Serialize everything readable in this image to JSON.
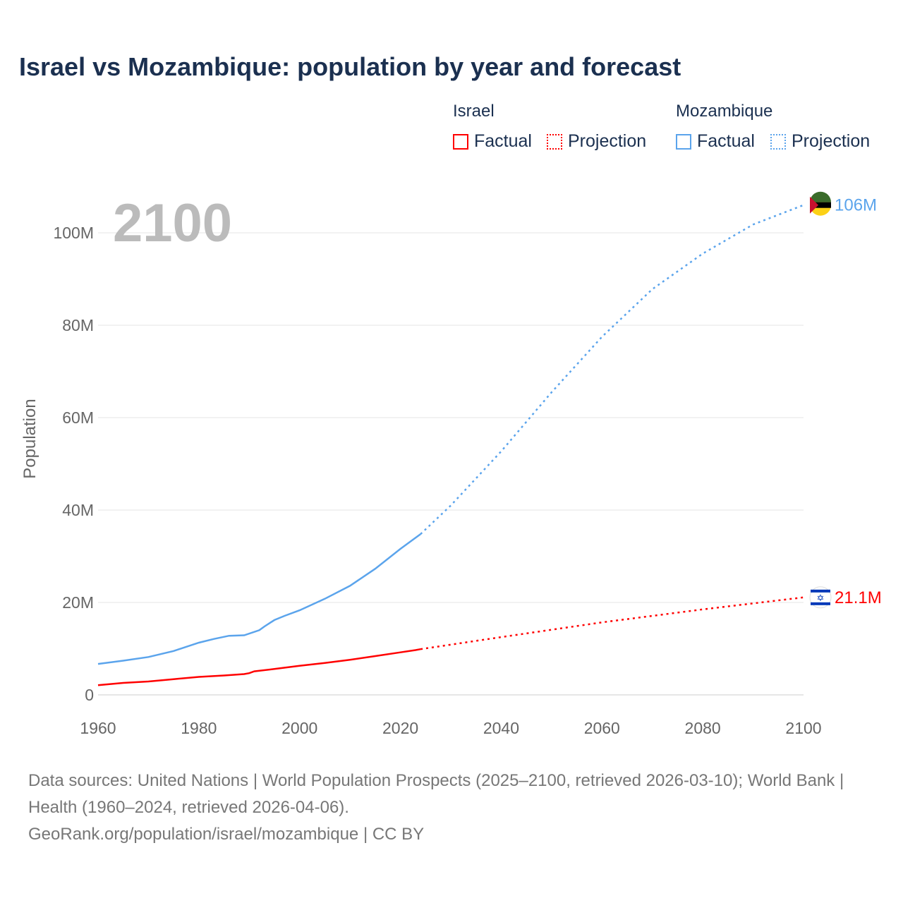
{
  "title": "Israel vs Mozambique: population by year and forecast",
  "legend": {
    "groups": [
      {
        "name": "Israel",
        "color": "#ff0000",
        "factual": "Factual",
        "projection": "Projection"
      },
      {
        "name": "Mozambique",
        "color": "#5ba4ec",
        "factual": "Factual",
        "projection": "Projection"
      }
    ]
  },
  "year_label": "2100",
  "footer": {
    "sources": "Data sources: United Nations | World Population Prospects (2025–2100, retrieved 2026-03-10); World Bank | Health (1960–2024, retrieved 2026-04-06).",
    "link": "GeoRank.org/population/israel/mozambique | CC BY"
  },
  "chart_data": {
    "type": "line",
    "title": "Israel vs Mozambique: population by year and forecast",
    "xlabel": "",
    "ylabel": "Population",
    "xlim": [
      1960,
      2100
    ],
    "ylim": [
      0,
      110
    ],
    "y_unit": "millions",
    "x_ticks": [
      1960,
      1980,
      2000,
      2020,
      2040,
      2060,
      2080,
      2100
    ],
    "x_tick_labels": [
      "1960",
      "1980",
      "2000",
      "2020",
      "2040",
      "2060",
      "2080",
      "2100"
    ],
    "y_ticks": [
      0,
      20,
      40,
      60,
      80,
      100
    ],
    "y_tick_labels": [
      "0",
      "20M",
      "40M",
      "60M",
      "80M",
      "100M"
    ],
    "grid": true,
    "series": [
      {
        "name": "Mozambique",
        "color": "#5ba4ec",
        "end_label": "106M",
        "factual": {
          "x": [
            1960,
            1965,
            1970,
            1975,
            1980,
            1983,
            1986,
            1989,
            1992,
            1993,
            1995,
            1997,
            2000,
            2005,
            2010,
            2015,
            2020,
            2024
          ],
          "y": [
            6.7,
            7.4,
            8.2,
            9.5,
            11.3,
            12.1,
            12.8,
            12.9,
            14.0,
            14.8,
            16.2,
            17.1,
            18.3,
            20.8,
            23.6,
            27.3,
            31.6,
            34.8
          ]
        },
        "projection": {
          "x": [
            2024,
            2030,
            2040,
            2050,
            2060,
            2070,
            2080,
            2090,
            2100
          ],
          "y": [
            34.8,
            41.0,
            52.7,
            65.5,
            77.5,
            87.8,
            95.5,
            101.8,
            106.0
          ]
        }
      },
      {
        "name": "Israel",
        "color": "#ff0000",
        "end_label": "21.1M",
        "factual": {
          "x": [
            1960,
            1965,
            1970,
            1975,
            1980,
            1985,
            1989,
            1990,
            1991,
            1995,
            2000,
            2005,
            2010,
            2015,
            2020,
            2023,
            2024
          ],
          "y": [
            2.1,
            2.6,
            2.9,
            3.4,
            3.9,
            4.2,
            4.5,
            4.7,
            5.1,
            5.6,
            6.3,
            6.9,
            7.6,
            8.4,
            9.2,
            9.7,
            9.9
          ]
        },
        "projection": {
          "x": [
            2024,
            2040,
            2060,
            2080,
            2100
          ],
          "y": [
            9.9,
            12.5,
            15.7,
            18.5,
            21.1
          ]
        }
      }
    ]
  }
}
